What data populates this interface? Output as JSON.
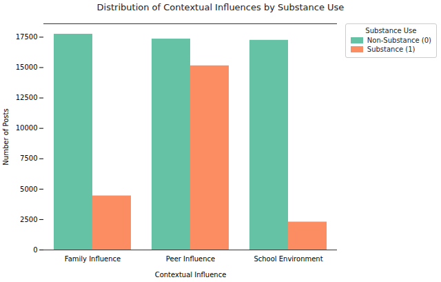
{
  "chart_data": {
    "type": "bar",
    "title": "Distribution of Contextual Influences by Substance Use",
    "x_label": "Contextual Influence",
    "y_label": "Number of Posts",
    "categories": [
      "Family Influence",
      "Peer Influence",
      "School Environment"
    ],
    "series": [
      {
        "name": "Non-Substance (0)",
        "color": "#66c2a5",
        "values": [
          17750,
          17350,
          17250
        ]
      },
      {
        "name": "Substance (1)",
        "color": "#fc8d62",
        "values": [
          4450,
          15150,
          2300
        ]
      }
    ],
    "legend_title": "Substance Use",
    "legend": "upper right",
    "ylim": [
      0,
      18600
    ],
    "yticks": [
      0,
      2500,
      5000,
      7500,
      10000,
      12500,
      15000,
      17500
    ],
    "grid": false
  }
}
